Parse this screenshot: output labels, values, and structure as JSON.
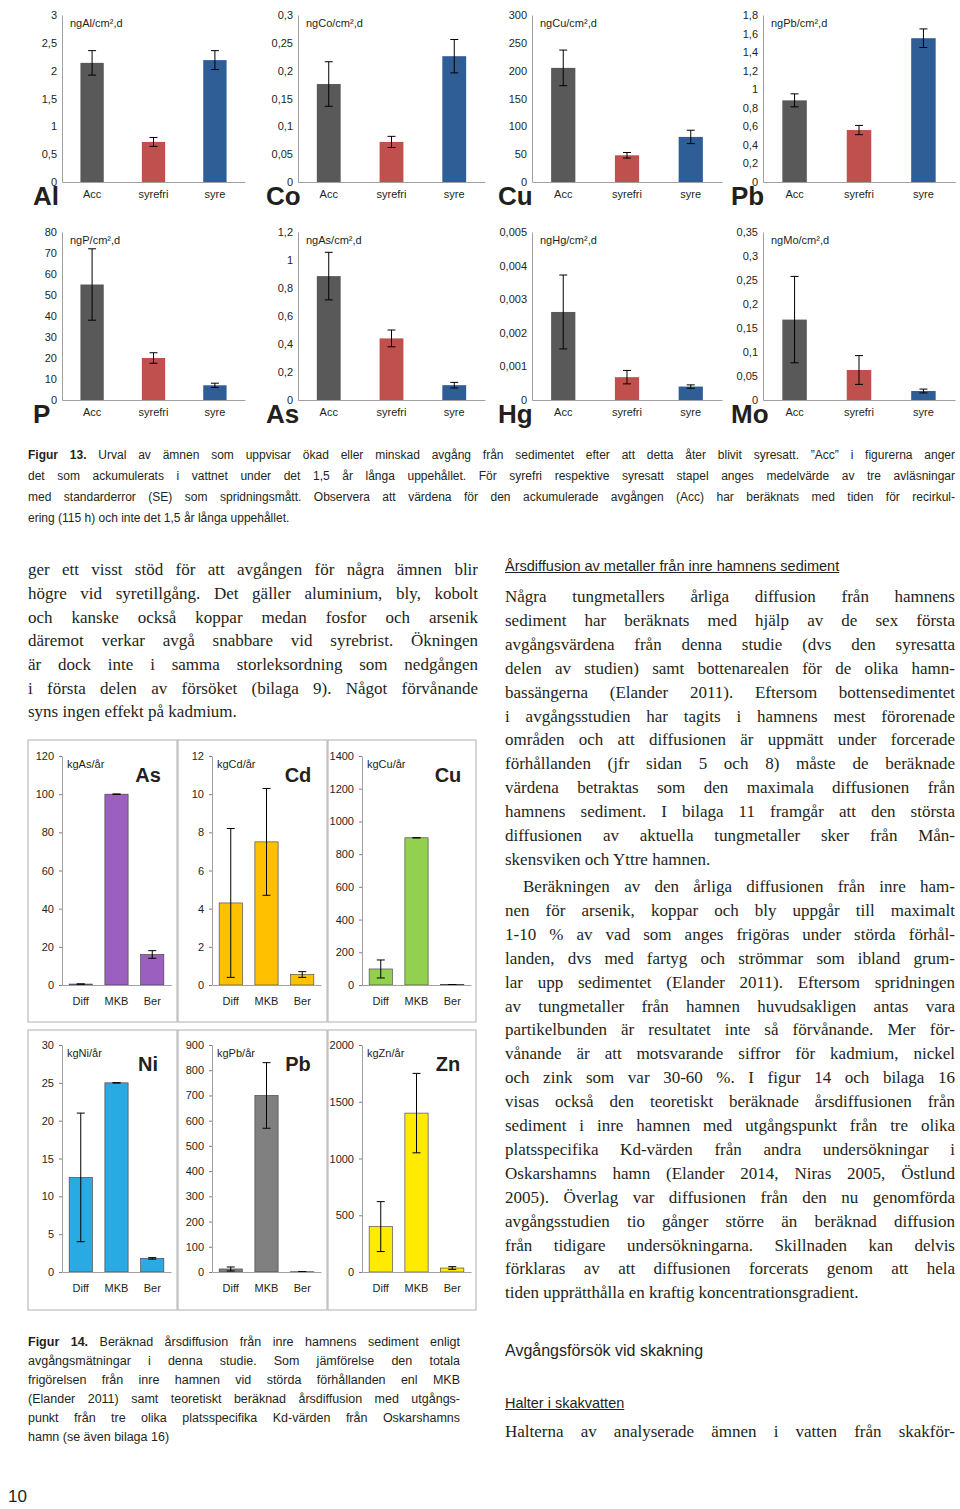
{
  "chart_data": [
    {
      "type": "bar",
      "title": "Al",
      "ylabel": "ngAl/cm²,d",
      "categories": [
        "Acc",
        "syrefri",
        "syre"
      ],
      "values": [
        2.14,
        0.72,
        2.19
      ],
      "errors": [
        0.22,
        0.08,
        0.17
      ],
      "colors": [
        "#595959",
        "#c0504d",
        "#2f5d96"
      ],
      "ylim": [
        0,
        3
      ],
      "yticks": [
        0,
        {
          "value": 0.5,
          "label": "0,5"
        },
        1,
        {
          "value": 1.5,
          "label": "1,5"
        },
        2,
        {
          "value": 2.5,
          "label": "2,5"
        },
        3
      ]
    },
    {
      "type": "bar",
      "title": "Co",
      "ylabel": "ngCo/cm²,d",
      "categories": [
        "Acc",
        "syrefri",
        "syre"
      ],
      "values": [
        0.176,
        0.072,
        0.226
      ],
      "errors": [
        0.04,
        0.01,
        0.03
      ],
      "colors": [
        "#595959",
        "#c0504d",
        "#2f5d96"
      ],
      "ylim": [
        0,
        0.3
      ],
      "yticks": [
        0,
        {
          "value": 0.05,
          "label": "0,05"
        },
        {
          "value": 0.1,
          "label": "0,1"
        },
        {
          "value": 0.15,
          "label": "0,15"
        },
        {
          "value": 0.2,
          "label": "0,2"
        },
        {
          "value": 0.25,
          "label": "0,25"
        },
        {
          "value": 0.3,
          "label": "0,3"
        }
      ]
    },
    {
      "type": "bar",
      "title": "Cu",
      "ylabel": "ngCu/cm²,d",
      "categories": [
        "Acc",
        "syrefri",
        "syre"
      ],
      "values": [
        205,
        48,
        81
      ],
      "errors": [
        32,
        5,
        12
      ],
      "colors": [
        "#595959",
        "#c0504d",
        "#2f5d96"
      ],
      "ylim": [
        0,
        300
      ],
      "yticks": [
        0,
        50,
        100,
        150,
        200,
        250,
        300
      ]
    },
    {
      "type": "bar",
      "title": "Pb",
      "ylabel": "ngPb/cm²,d",
      "categories": [
        "Acc",
        "syrefri",
        "syre"
      ],
      "values": [
        0.88,
        0.56,
        1.55
      ],
      "errors": [
        0.07,
        0.05,
        0.1
      ],
      "colors": [
        "#595959",
        "#c0504d",
        "#2f5d96"
      ],
      "ylim": [
        0,
        1.8
      ],
      "yticks": [
        0,
        {
          "value": 0.2,
          "label": "0,2"
        },
        {
          "value": 0.4,
          "label": "0,4"
        },
        {
          "value": 0.6,
          "label": "0,6"
        },
        {
          "value": 0.8,
          "label": "0,8"
        },
        1,
        {
          "value": 1.2,
          "label": "1,2"
        },
        {
          "value": 1.4,
          "label": "1,4"
        },
        {
          "value": 1.6,
          "label": "1,6"
        },
        {
          "value": 1.8,
          "label": "1,8"
        }
      ]
    },
    {
      "type": "bar",
      "title": "P",
      "ylabel": "ngP/cm²,d",
      "categories": [
        "Acc",
        "syrefri",
        "syre"
      ],
      "values": [
        55,
        20,
        7
      ],
      "errors": [
        17,
        2.5,
        1
      ],
      "colors": [
        "#595959",
        "#c0504d",
        "#2f5d96"
      ],
      "ylim": [
        0,
        80
      ],
      "yticks": [
        0,
        10,
        20,
        30,
        40,
        50,
        60,
        70,
        80
      ]
    },
    {
      "type": "bar",
      "title": "As",
      "ylabel": "ngAs/cm²,d",
      "categories": [
        "Acc",
        "syrefri",
        "syre"
      ],
      "values": [
        0.885,
        0.44,
        0.106
      ],
      "errors": [
        0.17,
        0.06,
        0.02
      ],
      "colors": [
        "#595959",
        "#c0504d",
        "#2f5d96"
      ],
      "ylim": [
        0,
        1.2
      ],
      "yticks": [
        0,
        {
          "value": 0.2,
          "label": "0,2"
        },
        {
          "value": 0.4,
          "label": "0,4"
        },
        {
          "value": 0.6,
          "label": "0,6"
        },
        {
          "value": 0.8,
          "label": "0,8"
        },
        1,
        {
          "value": 1.2,
          "label": "1,2"
        }
      ]
    },
    {
      "type": "bar",
      "title": "Hg",
      "ylabel": "ngHg/cm²,d",
      "categories": [
        "Acc",
        "syrefri",
        "syre"
      ],
      "values": [
        0.00262,
        0.00068,
        0.0004
      ],
      "errors": [
        0.0011,
        0.0002,
        5e-05
      ],
      "colors": [
        "#595959",
        "#c0504d",
        "#2f5d96"
      ],
      "ylim": [
        0,
        0.005
      ],
      "yticks": [
        0,
        {
          "value": 0.001,
          "label": "0,001"
        },
        {
          "value": 0.002,
          "label": "0,002"
        },
        {
          "value": 0.003,
          "label": "0,003"
        },
        {
          "value": 0.004,
          "label": "0,004"
        },
        {
          "value": 0.005,
          "label": "0,005"
        }
      ]
    },
    {
      "type": "bar",
      "title": "Mo",
      "ylabel": "ngMo/cm²,d",
      "categories": [
        "Acc",
        "syrefri",
        "syre"
      ],
      "values": [
        0.1675,
        0.0625,
        0.0187
      ],
      "errors": [
        0.09,
        0.03,
        0.004
      ],
      "colors": [
        "#595959",
        "#c0504d",
        "#2f5d96"
      ],
      "ylim": [
        0,
        0.35
      ],
      "yticks": [
        0,
        {
          "value": 0.05,
          "label": "0,05"
        },
        {
          "value": 0.1,
          "label": "0,1"
        },
        {
          "value": 0.15,
          "label": "0,15"
        },
        {
          "value": 0.2,
          "label": "0,2"
        },
        {
          "value": 0.25,
          "label": "0,25"
        },
        {
          "value": 0.3,
          "label": "0,3"
        },
        {
          "value": 0.35,
          "label": "0,35"
        }
      ]
    },
    {
      "type": "bar",
      "title": "As",
      "ylabel": "kgAs/år",
      "categories": [
        "Diff",
        "MKB",
        "Ber"
      ],
      "values": [
        0.5,
        100,
        16
      ],
      "errors": [
        0,
        0,
        2
      ],
      "color": "#9b5fc0",
      "ylim": [
        0,
        120
      ],
      "yticks": [
        0,
        20,
        40,
        60,
        80,
        100,
        120
      ]
    },
    {
      "type": "bar",
      "title": "Cd",
      "ylabel": "kgCd/år",
      "categories": [
        "Diff",
        "MKB",
        "Ber"
      ],
      "values": [
        4.3,
        7.5,
        0.55
      ],
      "errors": [
        3.9,
        2.8,
        0.15
      ],
      "color": "#ffc000",
      "ylim": [
        0,
        12
      ],
      "yticks": [
        0,
        2,
        4,
        6,
        8,
        10,
        12
      ]
    },
    {
      "type": "bar",
      "title": "Cu",
      "ylabel": "kgCu/år",
      "categories": [
        "Diff",
        "MKB",
        "Ber"
      ],
      "values": [
        98,
        900,
        2
      ],
      "errors": [
        55,
        0,
        0
      ],
      "color": "#92d050",
      "ylim": [
        0,
        1400
      ],
      "yticks": [
        0,
        200,
        400,
        600,
        800,
        1000,
        1200,
        1400
      ]
    },
    {
      "type": "bar",
      "title": "Ni",
      "ylabel": "kgNi/år",
      "categories": [
        "Diff",
        "MKB",
        "Ber"
      ],
      "values": [
        12.5,
        25,
        1.8
      ],
      "errors": [
        8.5,
        0,
        0.1
      ],
      "color": "#2aaae2",
      "ylim": [
        0,
        30
      ],
      "yticks": [
        0,
        5,
        10,
        15,
        20,
        25,
        30
      ]
    },
    {
      "type": "bar",
      "title": "Pb",
      "ylabel": "kgPb/år",
      "categories": [
        "Diff",
        "MKB",
        "Ber"
      ],
      "values": [
        12,
        700,
        1
      ],
      "errors": [
        8,
        130,
        0
      ],
      "color": "#808080",
      "ylim": [
        0,
        900
      ],
      "yticks": [
        0,
        100,
        200,
        300,
        400,
        500,
        600,
        700,
        800,
        900
      ]
    },
    {
      "type": "bar",
      "title": "Zn",
      "ylabel": "kgZn/år",
      "categories": [
        "Diff",
        "MKB",
        "Ber"
      ],
      "values": [
        400,
        1400,
        35
      ],
      "errors": [
        220,
        350,
        12
      ],
      "color": "#ffeb00",
      "ylim": [
        0,
        2000
      ],
      "yticks": [
        0,
        500,
        1000,
        1500,
        2000
      ]
    }
  ],
  "document": {
    "figure13_caption": {
      "label": "Figur 13.",
      "lines": [
        "Urval av ämnen som uppvisar ökad eller minskad avgång från sedimentet efter att detta åter blivit syresatt. ”Acc” i figurerna anger",
        "det som ackumulerats i vattnet under det 1,5 år långa uppehållet. För syrefri respektive syresatt stapel anges medelvärde av tre avläsningar",
        "med standarderror (SE) som spridningsmått. Observera att värdena för den ackumulerade avgången (Acc) har beräknats med tiden för recirkul-",
        "ering (115 h) och inte det 1,5 år långa uppehållet."
      ]
    },
    "left_paragraph": [
      "ger ett visst stöd för att avgången för några ämnen blir",
      "högre vid syretillgång. Det gäller aluminium, bly, kobolt",
      "och kanske också koppar medan fosfor och arsenik",
      "däremot verkar avgå snabbare vid syrebrist. Ökningen",
      "är dock inte i samma storleksordning som nedgången",
      "i första delen av försöket (bilaga 9). Något förvånande",
      "syns ingen effekt på kadmium."
    ],
    "right_heading": "Årsdiffusion av metaller från inre hamnens sediment",
    "right_paragraphs": [
      [
        "Några tungmetallers årliga diffusion från hamnens",
        "sediment har beräknats med hjälp av de sex första",
        "avgångsvärdena från denna studie (dvs den syresatta",
        "delen av studien) samt bottenarealen för de olika hamn-",
        "bassängerna (Elander 2011). Eftersom bottensedimentet",
        "i avgångsstudien har tagits i hamnens mest förorenade",
        "områden och att diffusionen är uppmätt under forcerade",
        "förhållanden (jfr sidan 5 och 8) måste de beräknade",
        "värdena betraktas som den maximala diffusionen från",
        "hamnens sediment. I bilaga 11 framgår att den största",
        "diffusionen av aktuella tungmetaller sker från Mån-",
        "skensviken och Yttre hamnen."
      ],
      [
        "Beräkningen av den årliga diffusionen från inre ham-",
        "nen för arsenik, koppar och bly uppgår till maximalt",
        "1-10 % av vad som anges frigöras under störda förhål-",
        "landen, dvs med fartyg och strömmar som ibland grum-",
        "lar upp sedimentet (Elander 2011). Eftersom spridningen",
        "av tungmetaller från hamnen huvudsakligen antas vara",
        "partikelbunden är resultatet inte så förvånande. Mer för-",
        "vånande är att motsvarande siffror för kadmium, nickel",
        "och zink som var 30-60 %. I figur 14 och bilaga 16",
        "visas också den teoretiskt beräknade årsdiffusionen från",
        "sediment i inre hamnen med utgångspunkt från tre olika",
        "platsspecifika Kd-värden från andra undersökningar i",
        "Oskarshamns hamn (Elander 2014, Niras 2005, Östlund",
        "2005). Överlag var diffusionen från den nu genomförda",
        "avgångsstudien tio gånger större än beräknad diffusion",
        "från tidigare undersökningarna. Skillnaden kan delvis",
        "förklaras av att diffusionen forcerats genom att hela",
        "tiden upprätthålla en kraftig koncentrationsgradient."
      ]
    ],
    "figure14_caption": {
      "label": "Figur 14.",
      "lines": [
        "Beräknad årsdiffusion från inre hamnens sediment enligt",
        "avgångsmätningar i denna studie. Som jämförelse den totala",
        "frigörelsen från inre hamnen vid störda förhållanden enl MKB",
        "(Elander 2011) samt teoretiskt beräknad årsdiffusion med utgångs-",
        "punkt från tre olika platsspecifika Kd-värden från Oskarshamns",
        "hamn (se även bilaga 16)"
      ]
    },
    "section_heading": "Avgångsförsök vid skakning",
    "subsection_heading": "Halter i skakvatten",
    "last_line": "Halterna av analyserade ämnen i vatten från skakför-",
    "page_number": "10"
  }
}
